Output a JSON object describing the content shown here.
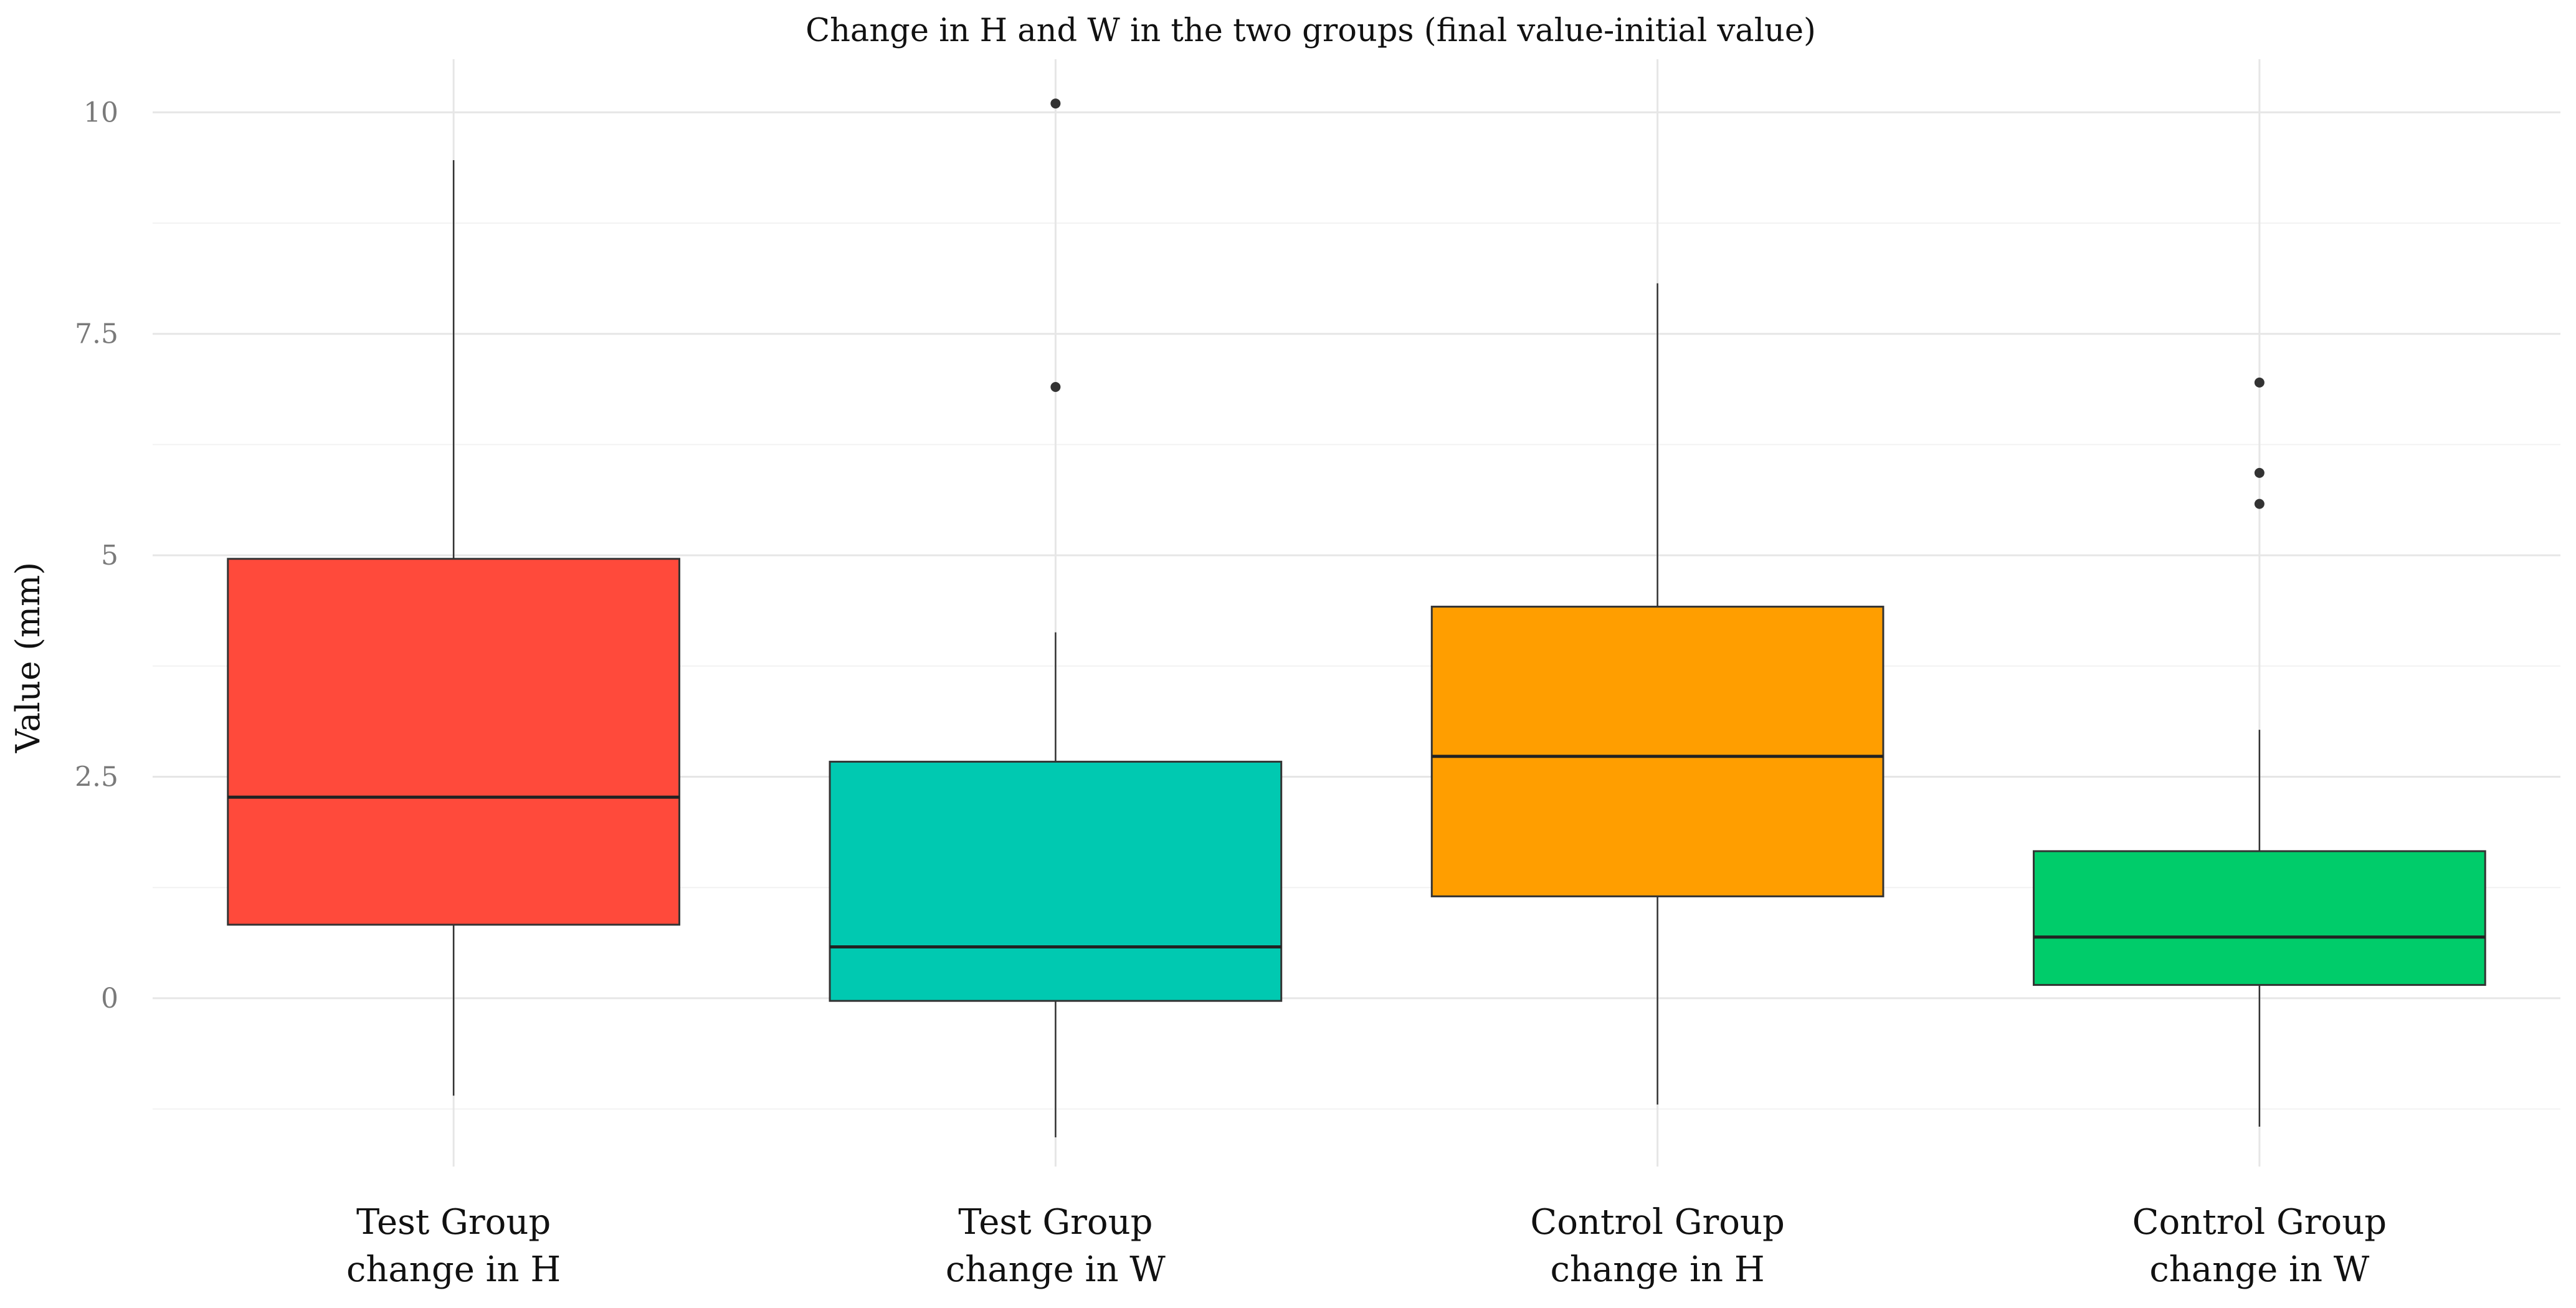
{
  "chart_data": {
    "type": "box",
    "title": "Change in H and W in the two groups (final value-initial value)",
    "xlabel": "",
    "ylabel": "Value (mm)",
    "ylim": [
      -1.9,
      10.6
    ],
    "yticks": [
      0,
      2.5,
      5,
      7.5,
      10
    ],
    "ytick_labels": [
      "0",
      "2.5",
      "5",
      "7.5",
      "10"
    ],
    "grid": true,
    "legend": "none",
    "categories": [
      [
        "Test Group",
        "change in H"
      ],
      [
        "Test Group",
        "change in W"
      ],
      [
        "Control Group",
        "change in H"
      ],
      [
        "Control Group",
        "change in W"
      ]
    ],
    "boxes": [
      {
        "whisker_low": -1.1,
        "q1": 0.83,
        "median": 2.27,
        "q3": 4.96,
        "whisker_high": 9.46,
        "outliers": [],
        "color": "#FF4A3B"
      },
      {
        "whisker_low": -1.57,
        "q1": -0.03,
        "median": 0.58,
        "q3": 2.67,
        "whisker_high": 4.13,
        "outliers": [
          10.1,
          6.9
        ],
        "color": "#00C9B1"
      },
      {
        "whisker_low": -1.2,
        "q1": 1.15,
        "median": 2.73,
        "q3": 4.42,
        "whisker_high": 8.07,
        "outliers": [],
        "color": "#FF9E00"
      },
      {
        "whisker_low": -1.45,
        "q1": 0.15,
        "median": 0.69,
        "q3": 1.66,
        "whisker_high": 3.03,
        "outliers": [
          6.95,
          5.93,
          5.58
        ],
        "color": "#00CC6A"
      }
    ]
  }
}
